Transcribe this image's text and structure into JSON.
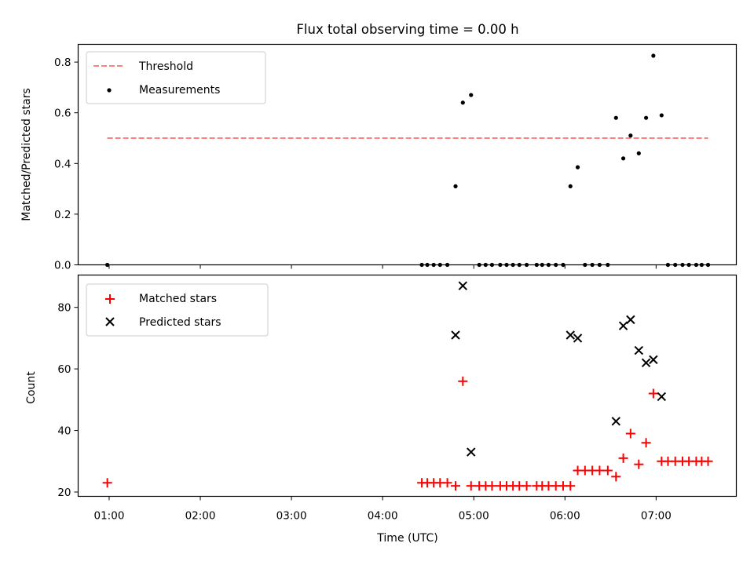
{
  "title": "Flux total observing time = 0.00 h",
  "chart_data": [
    {
      "type": "scatter",
      "ylabel": "Matched/Predicted stars",
      "ylim": [
        0,
        0.87
      ],
      "yticks": [
        0.0,
        0.2,
        0.4,
        0.6,
        0.8
      ],
      "ytick_labels": [
        "0.0",
        "0.2",
        "0.4",
        "0.6",
        "0.8"
      ],
      "xlim_hours": [
        0.66,
        7.88
      ],
      "grid": false,
      "legend_position": "top-left",
      "threshold": {
        "name": "Threshold",
        "value": 0.5,
        "x_start": 0.98,
        "x_end": 7.57,
        "color": "#ff8080"
      },
      "series": [
        {
          "name": "Measurements",
          "color": "#000000",
          "x": [
            0.98,
            4.43,
            4.49,
            4.56,
            4.63,
            4.71,
            4.8,
            4.88,
            4.97,
            5.06,
            5.13,
            5.2,
            5.29,
            5.36,
            5.43,
            5.5,
            5.58,
            5.69,
            5.75,
            5.82,
            5.9,
            5.98,
            6.06,
            6.14,
            6.22,
            6.3,
            6.38,
            6.47,
            6.56,
            6.64,
            6.72,
            6.81,
            6.89,
            6.97,
            7.06,
            7.13,
            7.21,
            7.29,
            7.36,
            7.44,
            7.5,
            7.57
          ],
          "y": [
            0.0,
            0.0,
            0.0,
            0.0,
            0.0,
            0.0,
            0.31,
            0.64,
            0.67,
            0.0,
            0.0,
            0.0,
            0.0,
            0.0,
            0.0,
            0.0,
            0.0,
            0.0,
            0.0,
            0.0,
            0.0,
            0.0,
            0.31,
            0.385,
            0.0,
            0.0,
            0.0,
            0.0,
            0.58,
            0.42,
            0.51,
            0.44,
            0.58,
            0.825,
            0.59,
            0.0,
            0.0,
            0.0,
            0.0,
            0.0,
            0.0,
            0.0
          ]
        }
      ]
    },
    {
      "type": "scatter",
      "xlabel": "Time (UTC)",
      "ylabel": "Count",
      "ylim": [
        18.6,
        90.5
      ],
      "yticks": [
        20,
        40,
        60,
        80
      ],
      "ytick_labels": [
        "20",
        "40",
        "60",
        "80"
      ],
      "xlim_hours": [
        0.66,
        7.88
      ],
      "xticks_hours": [
        1,
        2,
        3,
        4,
        5,
        6,
        7
      ],
      "xtick_labels": [
        "01:00",
        "02:00",
        "03:00",
        "04:00",
        "05:00",
        "06:00",
        "07:00"
      ],
      "grid": false,
      "legend_position": "top-left",
      "series": [
        {
          "name": "Matched stars",
          "marker": "plus",
          "color": "#ff0000",
          "x": [
            0.98,
            4.43,
            4.49,
            4.56,
            4.63,
            4.71,
            4.8,
            4.88,
            4.97,
            5.06,
            5.13,
            5.2,
            5.29,
            5.36,
            5.43,
            5.5,
            5.58,
            5.69,
            5.75,
            5.82,
            5.9,
            5.98,
            6.06,
            6.14,
            6.22,
            6.3,
            6.38,
            6.47,
            6.56,
            6.64,
            6.72,
            6.81,
            6.89,
            6.97,
            7.06,
            7.13,
            7.21,
            7.29,
            7.36,
            7.44,
            7.5,
            7.57
          ],
          "y": [
            23,
            23,
            23,
            23,
            23,
            23,
            22,
            56,
            22,
            22,
            22,
            22,
            22,
            22,
            22,
            22,
            22,
            22,
            22,
            22,
            22,
            22,
            22,
            27,
            27,
            27,
            27,
            27,
            25,
            31,
            39,
            29,
            36,
            52,
            30,
            30,
            30,
            30,
            30,
            30,
            30,
            30
          ]
        },
        {
          "name": "Predicted stars",
          "marker": "x",
          "color": "#000000",
          "x": [
            4.8,
            4.88,
            4.97,
            6.06,
            6.14,
            6.56,
            6.64,
            6.72,
            6.81,
            6.89,
            6.97,
            7.06
          ],
          "y": [
            71,
            87,
            33,
            71,
            70,
            43,
            74,
            76,
            66,
            62,
            63,
            51
          ]
        }
      ]
    }
  ]
}
